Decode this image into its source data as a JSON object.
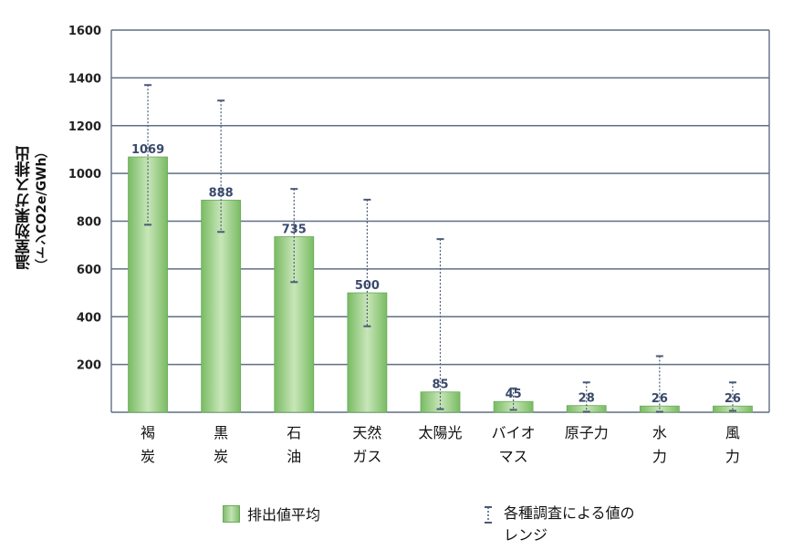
{
  "chart_data": {
    "type": "bar",
    "ylabel_line1": "温室効果ガス排出",
    "ylabel_line2": "（トンCO2e/GWh）",
    "ylim": [
      0,
      1600
    ],
    "yticks": [
      "200",
      "400",
      "600",
      "800",
      "1000",
      "1200",
      "1400",
      "1600"
    ],
    "ytick_values": [
      200,
      400,
      600,
      800,
      1000,
      1200,
      1400,
      1600
    ],
    "grid": true,
    "categories": [
      [
        "褐",
        "炭"
      ],
      [
        "黒",
        "炭"
      ],
      [
        "石",
        "油"
      ],
      [
        "天然",
        "ガス"
      ],
      [
        "太陽光"
      ],
      [
        "バイオ",
        "マス"
      ],
      [
        "原子力"
      ],
      [
        "水",
        "力"
      ],
      [
        "風",
        "力"
      ]
    ],
    "series": [
      {
        "name": "排出値平均",
        "values": [
          1069,
          888,
          735,
          500,
          85,
          45,
          28,
          26,
          26
        ]
      }
    ],
    "data_labels": [
      "1069",
      "888",
      "735",
      "500",
      "85",
      "45",
      "28",
      "26",
      "26"
    ],
    "ranges": [
      [
        785,
        1370
      ],
      [
        755,
        1305
      ],
      [
        545,
        935
      ],
      [
        360,
        890
      ],
      [
        13,
        725
      ],
      [
        10,
        100
      ],
      [
        2,
        125
      ],
      [
        2,
        235
      ],
      [
        6,
        125
      ]
    ],
    "legend": {
      "average_label": "排出値平均",
      "range_label_line1": "各種調査による値の",
      "range_label_line2": "レンジ",
      "placement": "bottom"
    },
    "colors": {
      "bar": "#8fc97a",
      "grid": "#5f6f86",
      "errorbar": "#4a5a75"
    }
  }
}
